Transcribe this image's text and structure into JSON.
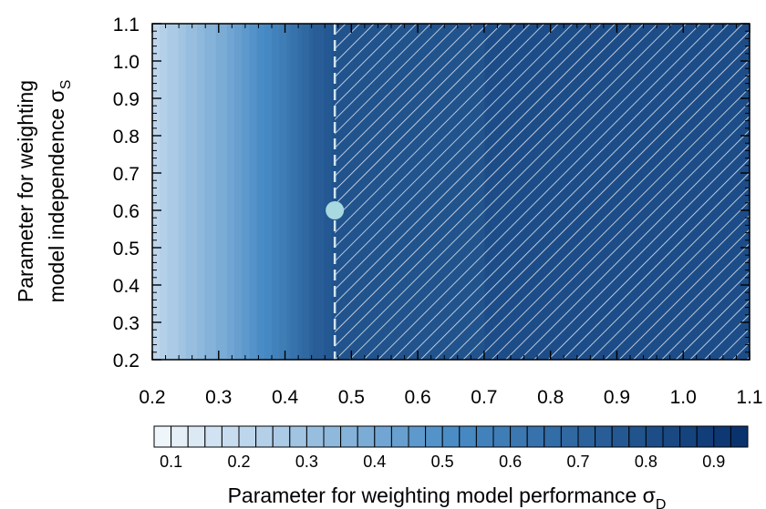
{
  "chart_data": {
    "type": "heatmap",
    "xlabel": "Parameter for weighting model performance σ",
    "xlabel_subscript": "D",
    "ylabel_line1": "Parameter for weighting",
    "ylabel_line2": "model independence σ",
    "ylabel_subscript": "S",
    "xlim": [
      0.2,
      1.1
    ],
    "ylim": [
      0.2,
      1.1
    ],
    "x_ticks": [
      "0.2",
      "0.3",
      "0.4",
      "0.5",
      "0.6",
      "0.7",
      "0.8",
      "0.9",
      "1.0",
      "1.1"
    ],
    "y_ticks": [
      "0.2",
      "0.3",
      "0.4",
      "0.5",
      "0.6",
      "0.7",
      "0.8",
      "0.9",
      "1.0",
      "1.1"
    ],
    "field": {
      "description": "value increases with sigma_D, nearly independent of sigma_S",
      "x": [
        0.2,
        0.25,
        0.3,
        0.35,
        0.4,
        0.45,
        0.475,
        0.5,
        0.6,
        0.7,
        0.8,
        0.9,
        1.0,
        1.1
      ],
      "value": [
        0.2,
        0.3,
        0.38,
        0.48,
        0.6,
        0.74,
        0.78,
        0.79,
        0.79,
        0.8,
        0.8,
        0.8,
        0.8,
        0.8
      ]
    },
    "hatched_region": {
      "x_from": 0.475,
      "x_to": 1.1
    },
    "threshold_line": {
      "x": 0.475,
      "style": "dashed"
    },
    "marker": {
      "x": 0.475,
      "y": 0.6,
      "color": "#a8d8e0"
    },
    "colorbar": {
      "levels_min": 0.075,
      "levels_max": 0.95,
      "step": 0.025,
      "labels": [
        "0.1",
        "0.2",
        "0.3",
        "0.4",
        "0.5",
        "0.6",
        "0.7",
        "0.8",
        "0.9"
      ],
      "color_low": "#f3f8fd",
      "color_mid": "#4a8dc6",
      "color_high": "#08306b"
    }
  }
}
